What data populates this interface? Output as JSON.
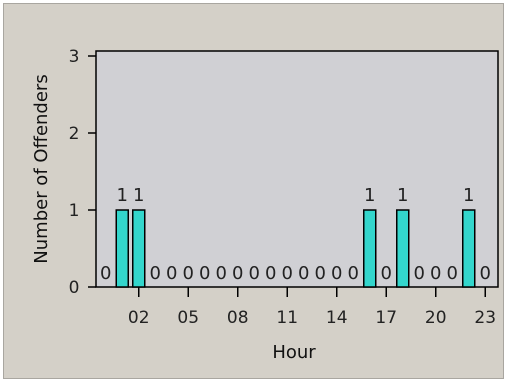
{
  "chart_data": {
    "type": "bar",
    "xlabel": "Hour",
    "ylabel": "Number of Offenders",
    "ylim": [
      0,
      3
    ],
    "y_ticks": [
      "0",
      "1",
      "2",
      "3"
    ],
    "categories": [
      "00",
      "01",
      "02",
      "03",
      "04",
      "05",
      "06",
      "07",
      "08",
      "09",
      "10",
      "11",
      "12",
      "13",
      "14",
      "15",
      "16",
      "17",
      "18",
      "19",
      "20",
      "21",
      "22",
      "23"
    ],
    "x_tick_labels": [
      {
        "hour": 2,
        "label": "02"
      },
      {
        "hour": 5,
        "label": "05"
      },
      {
        "hour": 8,
        "label": "08"
      },
      {
        "hour": 11,
        "label": "11"
      },
      {
        "hour": 14,
        "label": "14"
      },
      {
        "hour": 17,
        "label": "17"
      },
      {
        "hour": 20,
        "label": "20"
      },
      {
        "hour": 23,
        "label": "23"
      }
    ],
    "values": [
      0,
      1,
      1,
      0,
      0,
      0,
      0,
      0,
      0,
      0,
      0,
      0,
      0,
      0,
      0,
      0,
      1,
      0,
      1,
      0,
      0,
      0,
      1,
      0
    ],
    "colors": {
      "bar_fill": "#33d6cc",
      "bar_stroke": "#000000",
      "plot_bg": "#d0d0d4",
      "frame_bg": "#d4d0c8"
    },
    "grid": false
  }
}
